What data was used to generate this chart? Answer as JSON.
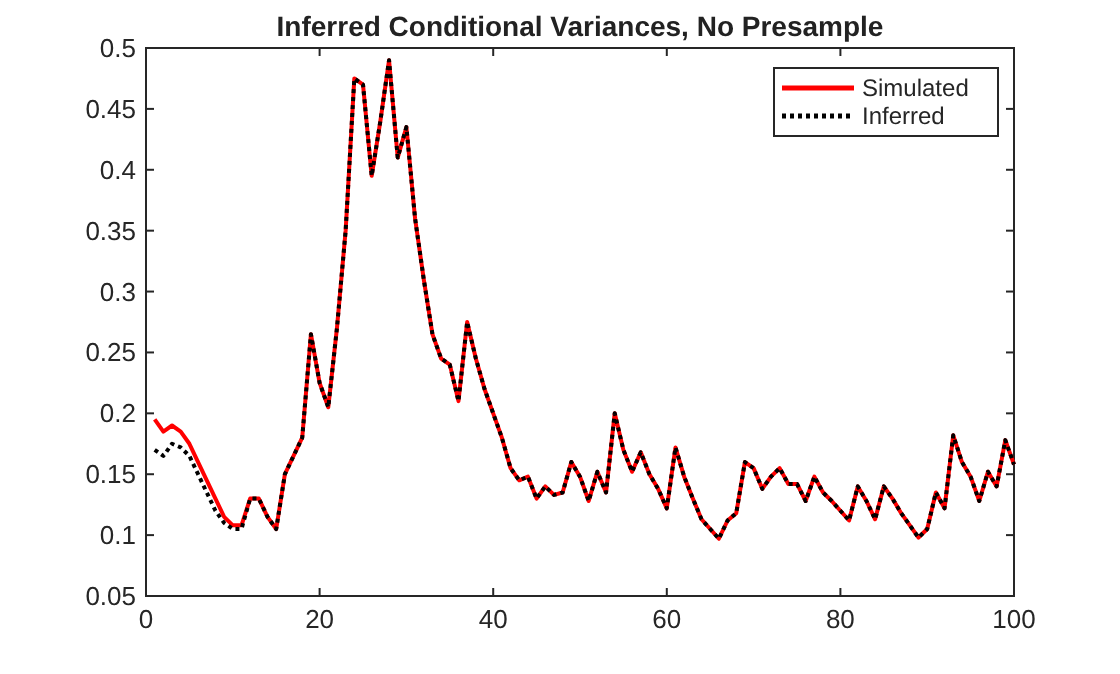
{
  "chart_data": {
    "type": "line",
    "title": "Inferred Conditional Variances, No Presample",
    "x": [
      1,
      2,
      3,
      4,
      5,
      6,
      7,
      8,
      9,
      10,
      11,
      12,
      13,
      14,
      15,
      16,
      17,
      18,
      19,
      20,
      21,
      22,
      23,
      24,
      25,
      26,
      27,
      28,
      29,
      30,
      31,
      32,
      33,
      34,
      35,
      36,
      37,
      38,
      39,
      40,
      41,
      42,
      43,
      44,
      45,
      46,
      47,
      48,
      49,
      50,
      51,
      52,
      53,
      54,
      55,
      56,
      57,
      58,
      59,
      60,
      61,
      62,
      63,
      64,
      65,
      66,
      67,
      68,
      69,
      70,
      71,
      72,
      73,
      74,
      75,
      76,
      77,
      78,
      79,
      80,
      81,
      82,
      83,
      84,
      85,
      86,
      87,
      88,
      89,
      90,
      91,
      92,
      93,
      94,
      95,
      96,
      97,
      98,
      99,
      100
    ],
    "series": [
      {
        "name": "Simulated",
        "color": "#ff0000",
        "line_style": "solid",
        "values": [
          0.195,
          0.185,
          0.19,
          0.185,
          0.175,
          0.16,
          0.145,
          0.13,
          0.115,
          0.108,
          0.108,
          0.13,
          0.13,
          0.115,
          0.105,
          0.15,
          0.165,
          0.18,
          0.265,
          0.225,
          0.205,
          0.27,
          0.35,
          0.475,
          0.47,
          0.395,
          0.44,
          0.49,
          0.41,
          0.435,
          0.36,
          0.31,
          0.265,
          0.245,
          0.24,
          0.21,
          0.275,
          0.245,
          0.22,
          0.2,
          0.18,
          0.155,
          0.145,
          0.148,
          0.13,
          0.14,
          0.133,
          0.135,
          0.16,
          0.148,
          0.128,
          0.152,
          0.135,
          0.2,
          0.17,
          0.152,
          0.168,
          0.15,
          0.138,
          0.122,
          0.172,
          0.148,
          0.13,
          0.113,
          0.105,
          0.097,
          0.112,
          0.118,
          0.16,
          0.155,
          0.138,
          0.148,
          0.155,
          0.142,
          0.142,
          0.128,
          0.148,
          0.135,
          0.128,
          0.12,
          0.112,
          0.14,
          0.128,
          0.113,
          0.14,
          0.13,
          0.118,
          0.108,
          0.098,
          0.105,
          0.135,
          0.122,
          0.182,
          0.16,
          0.148,
          0.128,
          0.152,
          0.14,
          0.178,
          0.158
        ]
      },
      {
        "name": "Inferred",
        "color": "#000000",
        "line_style": "dotted",
        "values": [
          0.17,
          0.165,
          0.175,
          0.172,
          0.165,
          0.15,
          0.135,
          0.12,
          0.11,
          0.105,
          0.105,
          0.13,
          0.13,
          0.115,
          0.105,
          0.15,
          0.165,
          0.18,
          0.265,
          0.225,
          0.205,
          0.27,
          0.35,
          0.475,
          0.47,
          0.395,
          0.44,
          0.49,
          0.41,
          0.435,
          0.36,
          0.31,
          0.265,
          0.245,
          0.24,
          0.21,
          0.275,
          0.245,
          0.22,
          0.2,
          0.18,
          0.155,
          0.145,
          0.148,
          0.13,
          0.14,
          0.133,
          0.135,
          0.16,
          0.148,
          0.128,
          0.152,
          0.135,
          0.2,
          0.17,
          0.152,
          0.168,
          0.15,
          0.138,
          0.122,
          0.172,
          0.148,
          0.13,
          0.113,
          0.105,
          0.097,
          0.112,
          0.118,
          0.16,
          0.155,
          0.138,
          0.148,
          0.155,
          0.142,
          0.142,
          0.128,
          0.148,
          0.135,
          0.128,
          0.12,
          0.112,
          0.14,
          0.128,
          0.113,
          0.14,
          0.13,
          0.118,
          0.108,
          0.098,
          0.105,
          0.135,
          0.122,
          0.182,
          0.16,
          0.148,
          0.128,
          0.152,
          0.14,
          0.178,
          0.158
        ]
      }
    ],
    "xlim": [
      0,
      100
    ],
    "xticks": [
      0,
      20,
      40,
      60,
      80,
      100
    ],
    "ylim": [
      0.05,
      0.5
    ],
    "yticks": [
      0.05,
      0.1,
      0.15,
      0.2,
      0.25,
      0.3,
      0.35,
      0.4,
      0.45,
      0.5
    ],
    "grid": false,
    "legend": "top right"
  }
}
